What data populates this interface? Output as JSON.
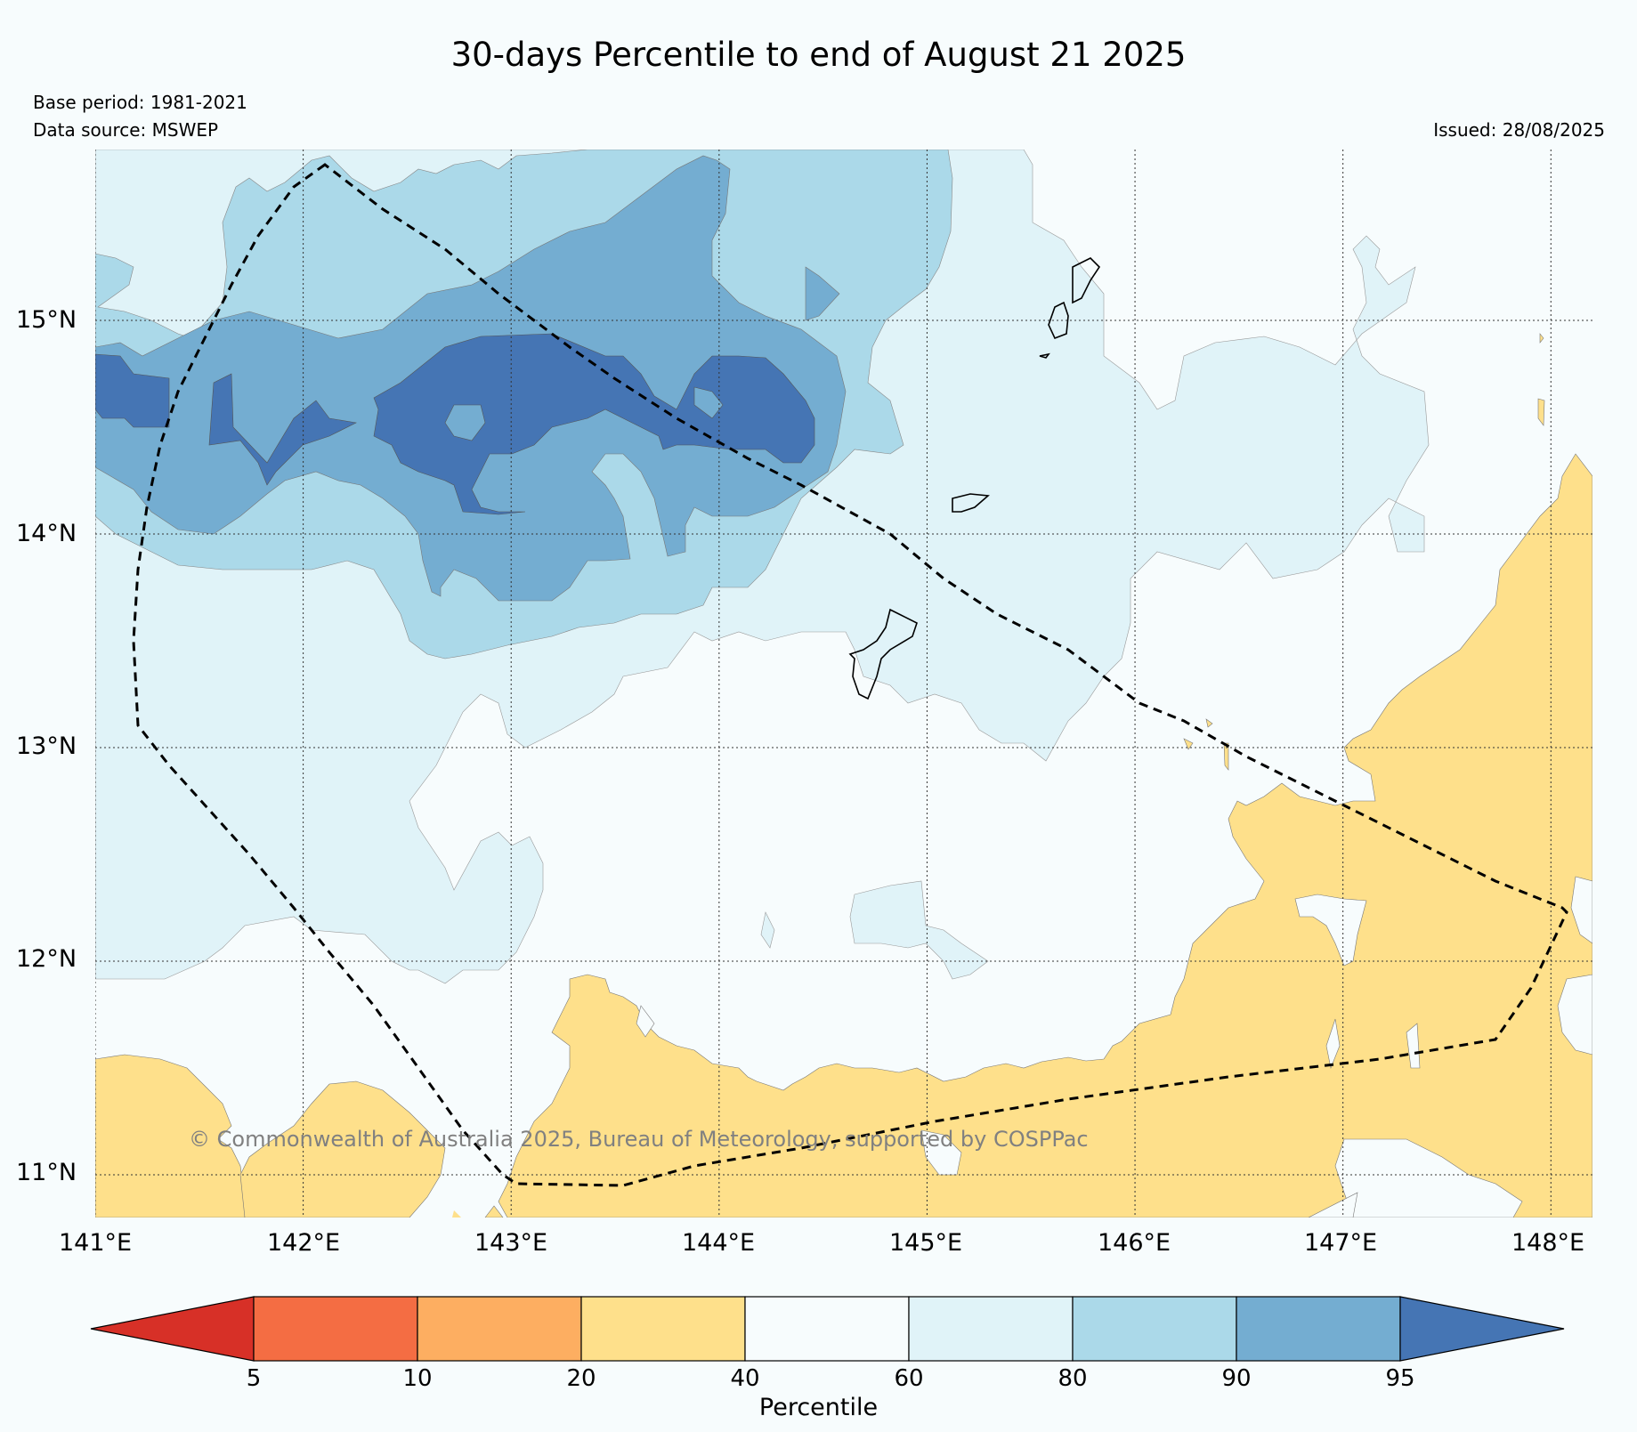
{
  "title": "30-days Percentile to end of August 21 2025",
  "base_period": "Base period: 1981-2021",
  "data_source": "Data source: MSWEP",
  "issued": "Issued: 28/08/2025",
  "credit": "© Commonwealth of Australia 2025, Bureau of Meteorology, supported by COSPPac",
  "map": {
    "lon_ticks": [
      "141°E",
      "142°E",
      "143°E",
      "144°E",
      "145°E",
      "146°E",
      "147°E",
      "148°E"
    ],
    "lat_ticks": [
      "15°N",
      "14°N",
      "13°N",
      "12°N",
      "11°N"
    ],
    "lon_range": [
      141,
      148.2
    ],
    "lat_range": [
      10.8,
      15.8
    ],
    "gridlines": true
  },
  "legend": {
    "title": "Percentile",
    "bounds": [
      "5",
      "10",
      "20",
      "40",
      "60",
      "80",
      "90",
      "95"
    ],
    "colors": [
      "#d73027",
      "#f46d43",
      "#fdae61",
      "#fee08b",
      "#f7fcfd",
      "#e0f3f8",
      "#abd9e9",
      "#74add1",
      "#4575b4"
    ]
  }
}
